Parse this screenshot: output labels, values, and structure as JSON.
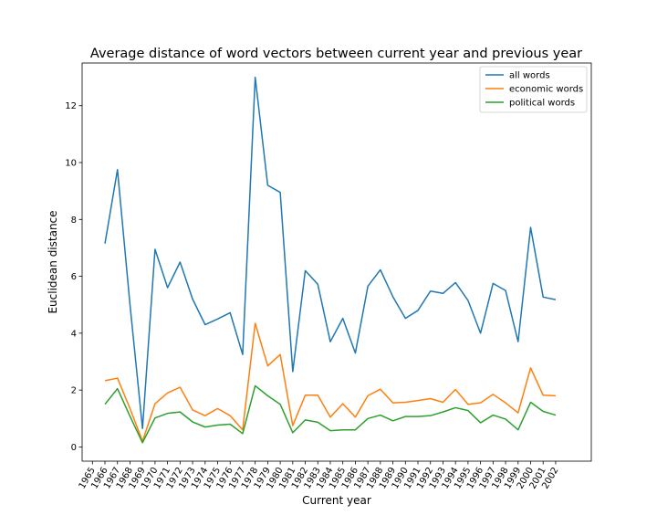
{
  "chart_data": {
    "type": "line",
    "title": "Average distance of word vectors between current year and previous year",
    "xlabel": "Current year",
    "ylabel": "Euclidean distance",
    "ylim": [
      -0.5,
      13.5
    ],
    "yticks": [
      0,
      2,
      4,
      6,
      8,
      10,
      12
    ],
    "categories": [
      "1965",
      "1966",
      "1967",
      "1968",
      "1969",
      "1970",
      "1971",
      "1972",
      "1973",
      "1974",
      "1975",
      "1976",
      "1977",
      "1978",
      "1979",
      "1980",
      "1981",
      "1982",
      "1983",
      "1984",
      "1985",
      "1986",
      "1987",
      "1988",
      "1989",
      "1990",
      "1991",
      "1992",
      "1993",
      "1994",
      "1995",
      "1996",
      "1997",
      "1998",
      "1999",
      "2000",
      "2001",
      "2002"
    ],
    "legend_position": "top-right",
    "grid": false,
    "series": [
      {
        "name": "all words",
        "color": "#1f77b4",
        "x": [
          "1966",
          "1967",
          "1968",
          "1969",
          "1970",
          "1971",
          "1972",
          "1973",
          "1974",
          "1975",
          "1976",
          "1977",
          "1978",
          "1979",
          "1980",
          "1981",
          "1982",
          "1983",
          "1984",
          "1985",
          "1986",
          "1987",
          "1988",
          "1989",
          "1990",
          "1991",
          "1992",
          "1993",
          "1994",
          "1995",
          "1996",
          "1997",
          "1998",
          "1999",
          "2000",
          "2001",
          "2002"
        ],
        "values": [
          7.15,
          9.75,
          5.0,
          0.65,
          6.95,
          5.6,
          6.5,
          5.2,
          4.3,
          4.5,
          4.72,
          3.25,
          13.0,
          9.2,
          8.95,
          2.65,
          6.2,
          5.72,
          3.7,
          4.52,
          3.3,
          5.65,
          6.23,
          5.28,
          4.52,
          4.8,
          5.48,
          5.4,
          5.78,
          5.15,
          4.0,
          5.75,
          5.5,
          3.7,
          7.72,
          5.27,
          5.18
        ]
      },
      {
        "name": "economic words",
        "color": "#ff7f0e",
        "x": [
          "1966",
          "1967",
          "1968",
          "1969",
          "1970",
          "1971",
          "1972",
          "1973",
          "1974",
          "1975",
          "1976",
          "1977",
          "1978",
          "1979",
          "1980",
          "1981",
          "1982",
          "1983",
          "1984",
          "1985",
          "1986",
          "1987",
          "1988",
          "1989",
          "1990",
          "1991",
          "1992",
          "1993",
          "1994",
          "1995",
          "1996",
          "1997",
          "1998",
          "1999",
          "2000",
          "2001",
          "2002"
        ],
        "values": [
          2.33,
          2.42,
          1.35,
          0.2,
          1.52,
          1.9,
          2.1,
          1.3,
          1.1,
          1.35,
          1.1,
          0.6,
          4.35,
          2.85,
          3.25,
          0.75,
          1.82,
          1.82,
          1.05,
          1.52,
          1.05,
          1.8,
          2.03,
          1.55,
          1.57,
          1.63,
          1.7,
          1.57,
          2.02,
          1.5,
          1.55,
          1.85,
          1.55,
          1.2,
          2.78,
          1.82,
          1.8
        ]
      },
      {
        "name": "political words",
        "color": "#2ca02c",
        "x": [
          "1966",
          "1967",
          "1968",
          "1969",
          "1970",
          "1971",
          "1972",
          "1973",
          "1974",
          "1975",
          "1976",
          "1977",
          "1978",
          "1979",
          "1980",
          "1981",
          "1982",
          "1983",
          "1984",
          "1985",
          "1986",
          "1987",
          "1988",
          "1989",
          "1990",
          "1991",
          "1992",
          "1993",
          "1994",
          "1995",
          "1996",
          "1997",
          "1998",
          "1999",
          "2000",
          "2001",
          "2002"
        ],
        "values": [
          1.5,
          2.05,
          1.08,
          0.15,
          1.02,
          1.18,
          1.23,
          0.88,
          0.7,
          0.77,
          0.8,
          0.47,
          2.15,
          1.8,
          1.5,
          0.5,
          0.95,
          0.87,
          0.57,
          0.6,
          0.6,
          1.0,
          1.12,
          0.92,
          1.07,
          1.07,
          1.1,
          1.23,
          1.38,
          1.28,
          0.85,
          1.12,
          0.98,
          0.6,
          1.57,
          1.25,
          1.12
        ]
      }
    ]
  }
}
